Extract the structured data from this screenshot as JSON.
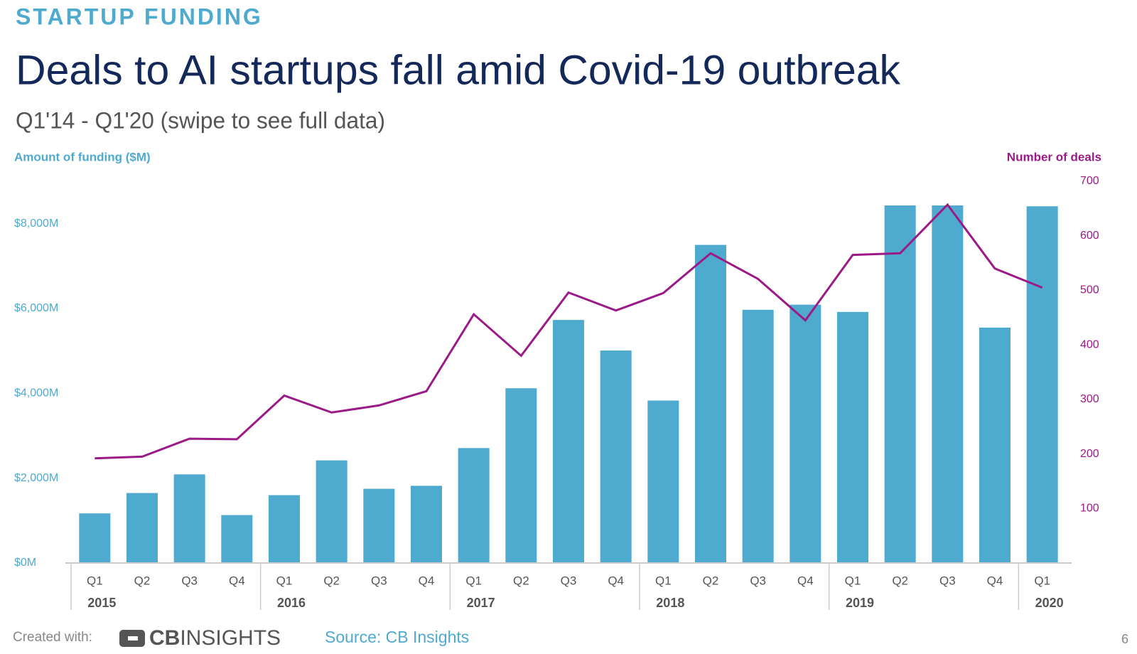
{
  "kicker": "STARTUP FUNDING",
  "chart_data": {
    "type": "bar-line",
    "title": "Deals to AI startups fall amid Covid-19 outbreak",
    "subtitle": "Q1'14 - Q1'20 (swipe to see full data)",
    "categories": [
      "Q1",
      "Q2",
      "Q3",
      "Q4",
      "Q1",
      "Q2",
      "Q3",
      "Q4",
      "Q1",
      "Q2",
      "Q3",
      "Q4",
      "Q1",
      "Q2",
      "Q3",
      "Q4",
      "Q1",
      "Q2",
      "Q3",
      "Q4",
      "Q1"
    ],
    "groups": [
      {
        "label": "2015",
        "span": 4
      },
      {
        "label": "2016",
        "span": 4
      },
      {
        "label": "2017",
        "span": 4
      },
      {
        "label": "2018",
        "span": 4
      },
      {
        "label": "2019",
        "span": 4
      },
      {
        "label": "2020",
        "span": 1
      }
    ],
    "series": [
      {
        "name": "Amount of funding ($M)",
        "type": "bar",
        "color": "#4faacf",
        "values": [
          1170,
          1650,
          2090,
          1130,
          1600,
          2420,
          1750,
          1820,
          2710,
          4120,
          5730,
          5010,
          3830,
          7500,
          5970,
          6090,
          5920,
          8430,
          8430,
          5550,
          8410
        ]
      },
      {
        "name": "Number of deals",
        "type": "line",
        "axis": "y2",
        "color": "#9c1a87",
        "values": [
          192,
          195,
          228,
          227,
          307,
          276,
          289,
          315,
          456,
          380,
          496,
          463,
          495,
          568,
          521,
          445,
          565,
          568,
          657,
          540,
          505
        ]
      }
    ],
    "ylim": [
      0,
      9000
    ],
    "yticks": [
      {
        "value": 0,
        "label": "$0M"
      },
      {
        "value": 2000,
        "label": "$2,000M"
      },
      {
        "value": 4000,
        "label": "$4,000M"
      },
      {
        "value": 6000,
        "label": "$6,000M"
      },
      {
        "value": 8000,
        "label": "$8,000M"
      }
    ],
    "y2lim": [
      0,
      700
    ],
    "y2ticks": [
      100,
      200,
      300,
      400,
      500,
      600,
      700
    ]
  },
  "footer": {
    "created": "Created with:",
    "logo": {
      "bold": "CB",
      "light": "INSIGHTS"
    },
    "source": "Source: CB Insights",
    "page": "6"
  }
}
